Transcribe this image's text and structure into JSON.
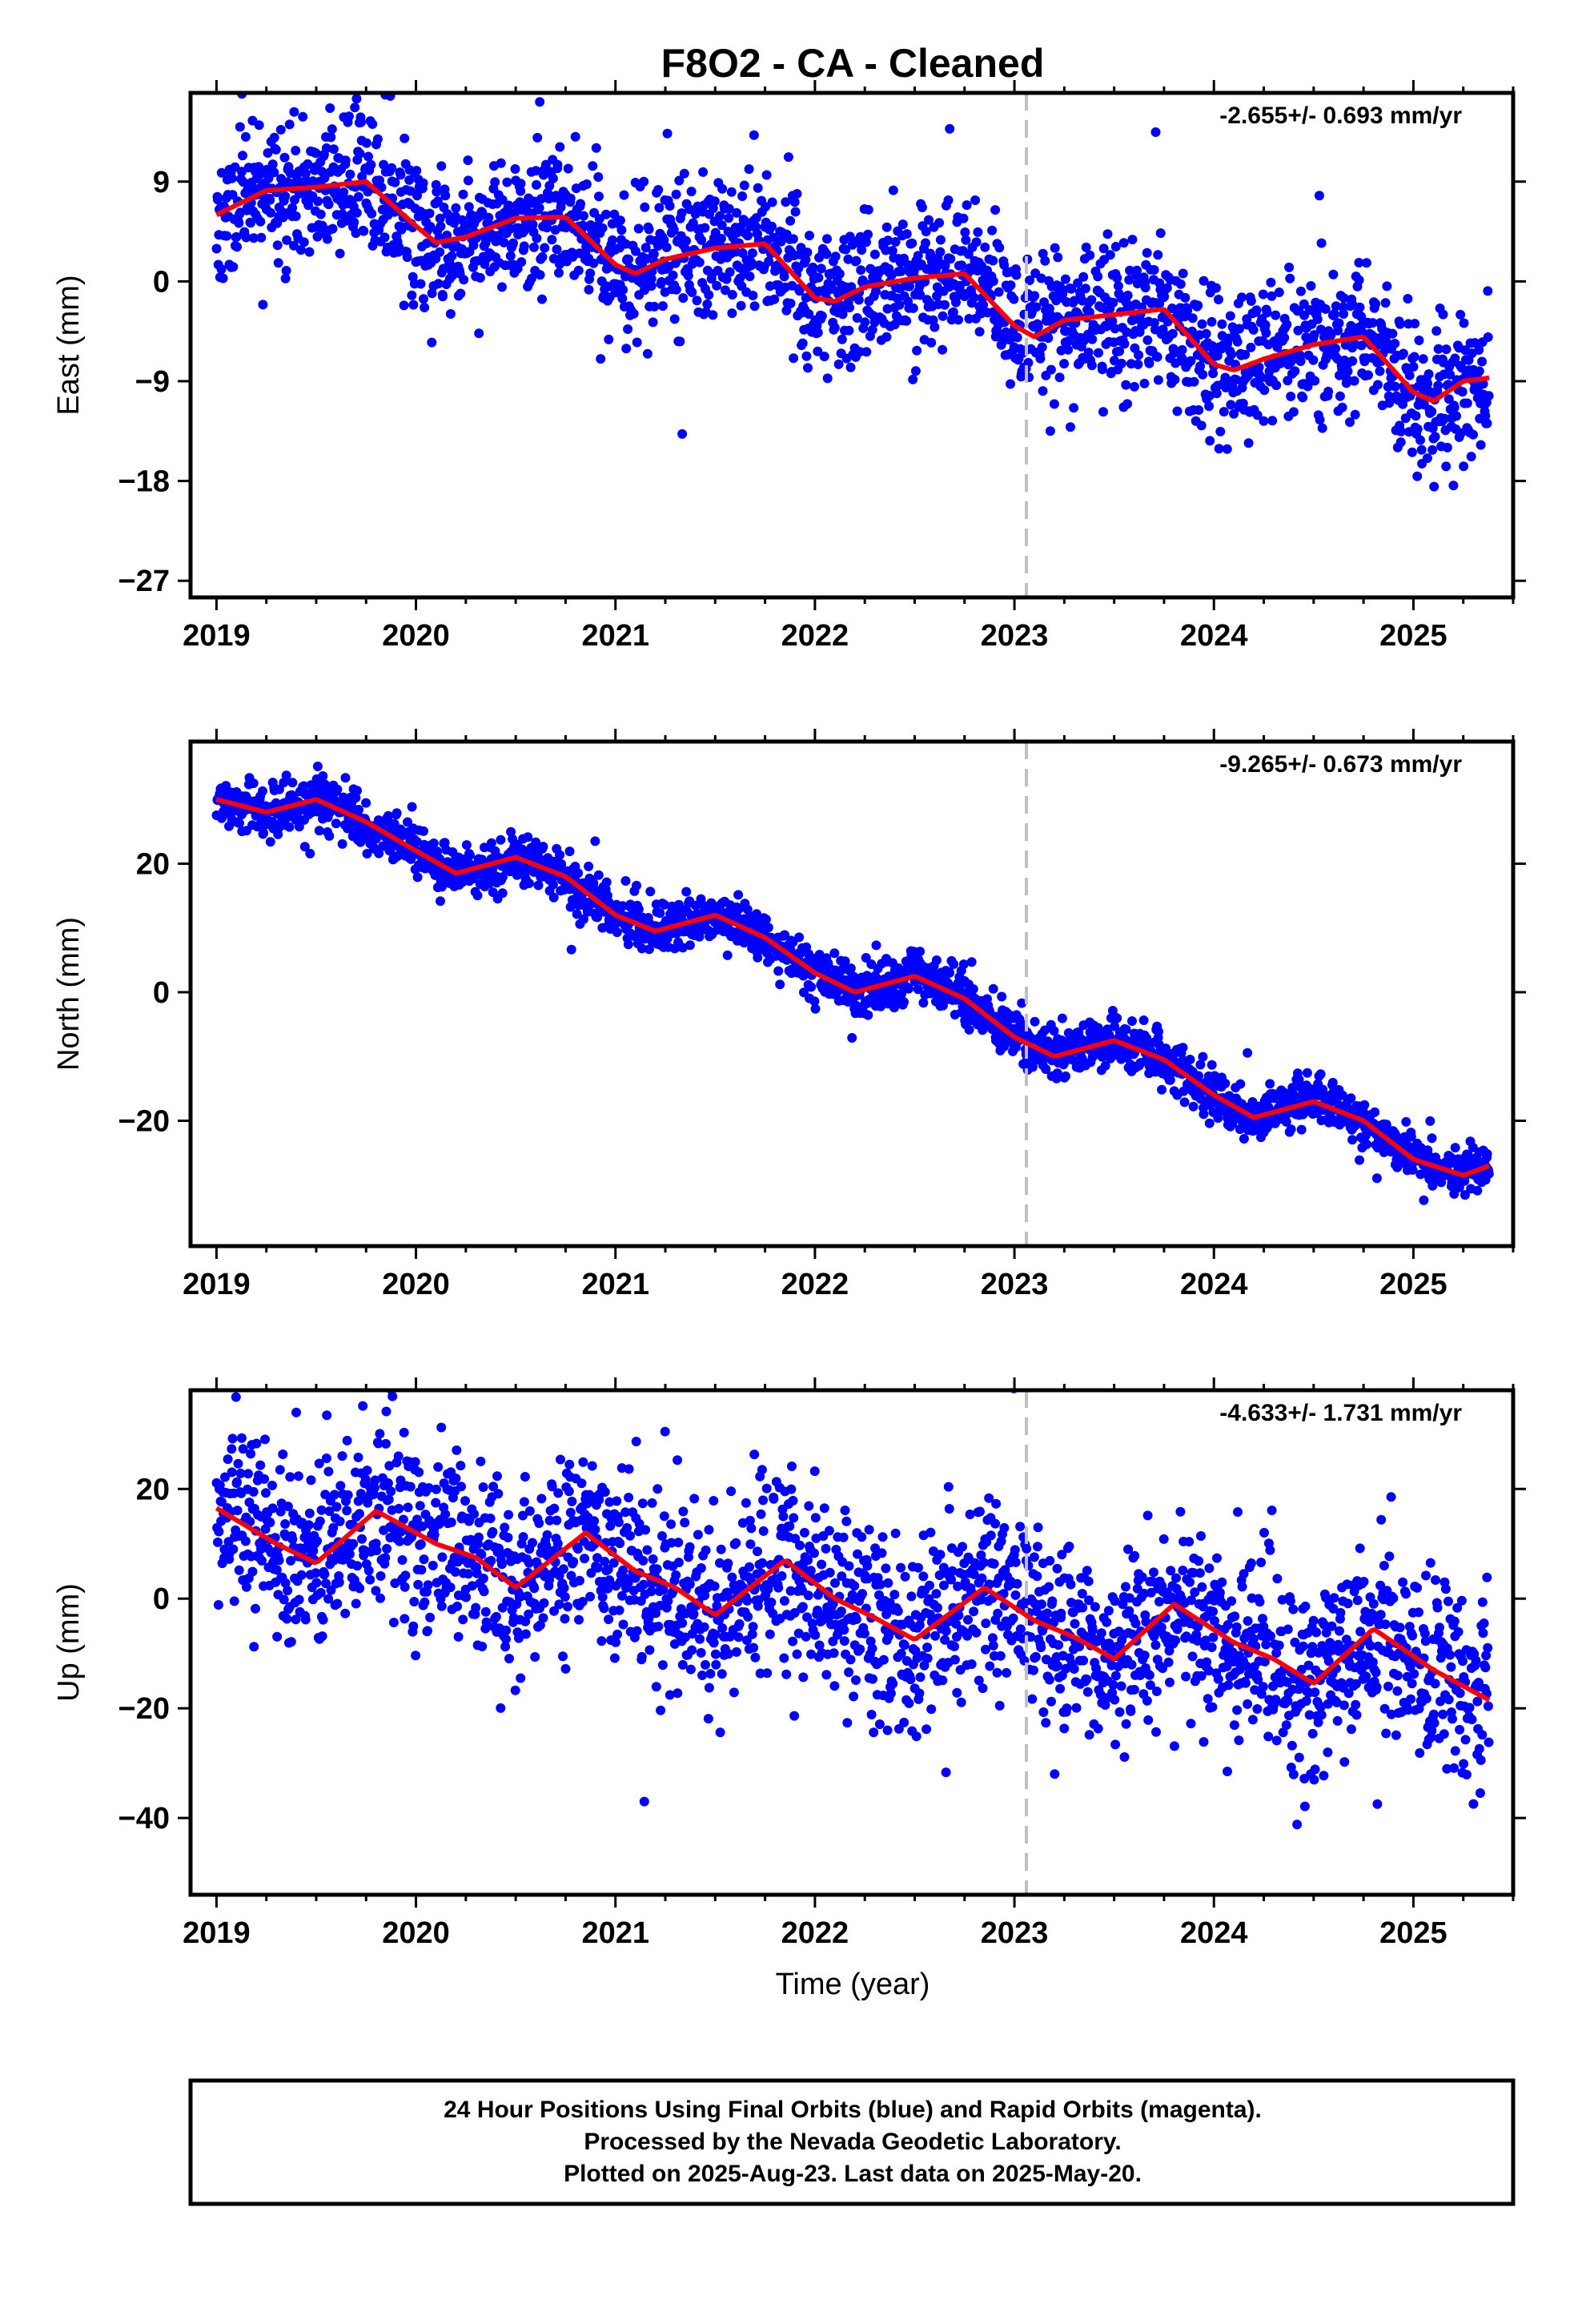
{
  "title": "F8O2  - CA - Cleaned",
  "colors": {
    "points": "#0000ff",
    "fit": "#ff0000",
    "marker": "#c0c0c0",
    "frame": "#000000"
  },
  "chart_data": [
    {
      "type": "scatter",
      "ylabel": "East (mm)",
      "xlabel": "",
      "rate_label": "-2.655+/- 0.693 mm/yr",
      "xlim": [
        2018.87,
        2025.5
      ],
      "ylim": [
        -28.5,
        17
      ],
      "x_ticks": [
        2019,
        2020,
        2021,
        2022,
        2023,
        2024,
        2025
      ],
      "y_ticks": [
        -27,
        -18,
        -9,
        0,
        9
      ],
      "marker_line_x": 2023.06,
      "model": {
        "start": 2019.0,
        "end": 2025.38,
        "intercept": 6.6,
        "rate": -2.655,
        "annual_amp": 1.9,
        "annual_phase": 3.1,
        "semi_amp": 0.9,
        "semi_phase": 0.8
      },
      "scatter": {
        "n": 2250,
        "sigma": 3.2,
        "seed": 11
      },
      "fit_samples": [
        [
          2019.0,
          6.0
        ],
        [
          2019.25,
          8.2
        ],
        [
          2019.5,
          8.5
        ],
        [
          2019.75,
          9.0
        ],
        [
          2020.0,
          5.0
        ],
        [
          2020.1,
          3.5
        ],
        [
          2020.25,
          4.0
        ],
        [
          2020.5,
          5.7
        ],
        [
          2020.75,
          5.8
        ],
        [
          2021.0,
          1.5
        ],
        [
          2021.1,
          0.7
        ],
        [
          2021.25,
          2.0
        ],
        [
          2021.5,
          3.0
        ],
        [
          2021.75,
          3.4
        ],
        [
          2022.0,
          -1.5
        ],
        [
          2022.1,
          -1.8
        ],
        [
          2022.25,
          -0.5
        ],
        [
          2022.5,
          0.3
        ],
        [
          2022.75,
          0.7
        ],
        [
          2023.0,
          -4.0
        ],
        [
          2023.1,
          -5.0
        ],
        [
          2023.25,
          -3.5
        ],
        [
          2023.5,
          -3.0
        ],
        [
          2023.75,
          -2.5
        ],
        [
          2024.0,
          -7.5
        ],
        [
          2024.1,
          -8.0
        ],
        [
          2024.25,
          -7.0
        ],
        [
          2024.5,
          -5.7
        ],
        [
          2024.75,
          -5.0
        ],
        [
          2025.0,
          -10.0
        ],
        [
          2025.1,
          -10.8
        ],
        [
          2025.25,
          -9.0
        ],
        [
          2025.38,
          -8.7
        ]
      ]
    },
    {
      "type": "scatter",
      "ylabel": "North (mm)",
      "xlabel": "",
      "rate_label": "-9.265+/- 0.673 mm/yr",
      "xlim": [
        2018.87,
        2025.5
      ],
      "ylim": [
        -39.5,
        39
      ],
      "x_ticks": [
        2019,
        2020,
        2021,
        2022,
        2023,
        2024,
        2025
      ],
      "y_ticks": [
        -20,
        0,
        20
      ],
      "marker_line_x": 2023.06,
      "model": {
        "start": 2019.0,
        "end": 2025.38,
        "intercept": 29.5,
        "rate": -9.265,
        "annual_amp": 3.7,
        "annual_phase": 0.4,
        "semi_amp": 0.6,
        "semi_phase": 1.2
      },
      "scatter": {
        "n": 2250,
        "sigma": 1.9,
        "seed": 23
      },
      "fit_samples": [
        [
          2019.0,
          30.0
        ],
        [
          2019.25,
          28.0
        ],
        [
          2019.5,
          30.0
        ],
        [
          2019.75,
          26.5
        ],
        [
          2020.0,
          22.0
        ],
        [
          2020.2,
          18.5
        ],
        [
          2020.5,
          21.0
        ],
        [
          2020.75,
          18.0
        ],
        [
          2021.0,
          12.0
        ],
        [
          2021.2,
          9.5
        ],
        [
          2021.5,
          12.0
        ],
        [
          2021.75,
          8.5
        ],
        [
          2022.0,
          3.0
        ],
        [
          2022.2,
          0.0
        ],
        [
          2022.5,
          2.5
        ],
        [
          2022.75,
          -1.0
        ],
        [
          2023.0,
          -7.0
        ],
        [
          2023.2,
          -10.0
        ],
        [
          2023.5,
          -7.5
        ],
        [
          2023.75,
          -10.5
        ],
        [
          2024.0,
          -16.0
        ],
        [
          2024.2,
          -19.5
        ],
        [
          2024.5,
          -17.0
        ],
        [
          2024.75,
          -20.0
        ],
        [
          2025.0,
          -26.0
        ],
        [
          2025.25,
          -28.5
        ],
        [
          2025.38,
          -27.0
        ]
      ]
    },
    {
      "type": "scatter",
      "ylabel": "Up (mm)",
      "xlabel": "Time (year)",
      "rate_label": "-4.633+/- 1.731 mm/yr",
      "xlim": [
        2018.87,
        2025.5
      ],
      "ylim": [
        -54,
        38
      ],
      "x_ticks": [
        2019,
        2020,
        2021,
        2022,
        2023,
        2024,
        2025
      ],
      "y_ticks": [
        -40,
        -20,
        0,
        20
      ],
      "marker_line_x": 2023.06,
      "model": {
        "start": 2019.0,
        "end": 2025.38,
        "intercept": 13.5,
        "rate": -4.633,
        "annual_amp": 5.5,
        "annual_phase": 2.6,
        "semi_amp": 1.5,
        "semi_phase": 0.2
      },
      "scatter": {
        "n": 2250,
        "sigma": 8.5,
        "seed": 37
      },
      "fit_samples": [
        [
          2019.0,
          16.5
        ],
        [
          2019.3,
          10.0
        ],
        [
          2019.5,
          6.5
        ],
        [
          2019.8,
          16.0
        ],
        [
          2020.1,
          10.0
        ],
        [
          2020.3,
          7.5
        ],
        [
          2020.5,
          2.0
        ],
        [
          2020.85,
          12.0
        ],
        [
          2021.1,
          5.0
        ],
        [
          2021.3,
          2.0
        ],
        [
          2021.5,
          -3.0
        ],
        [
          2021.85,
          7.0
        ],
        [
          2022.1,
          0.0
        ],
        [
          2022.3,
          -3.5
        ],
        [
          2022.5,
          -7.5
        ],
        [
          2022.85,
          2.0
        ],
        [
          2023.1,
          -4.0
        ],
        [
          2023.3,
          -7.0
        ],
        [
          2023.5,
          -11.0
        ],
        [
          2023.8,
          -1.0
        ],
        [
          2024.1,
          -8.0
        ],
        [
          2024.3,
          -11.0
        ],
        [
          2024.5,
          -15.5
        ],
        [
          2024.8,
          -5.5
        ],
        [
          2025.1,
          -13.0
        ],
        [
          2025.38,
          -18.5
        ]
      ]
    }
  ],
  "footer": {
    "line1": "24 Hour Positions Using Final Orbits (blue) and Rapid Orbits (magenta).",
    "line2": "Processed by the Nevada Geodetic Laboratory.",
    "line3": "Plotted on 2025-Aug-23. Last data on 2025-May-20."
  }
}
